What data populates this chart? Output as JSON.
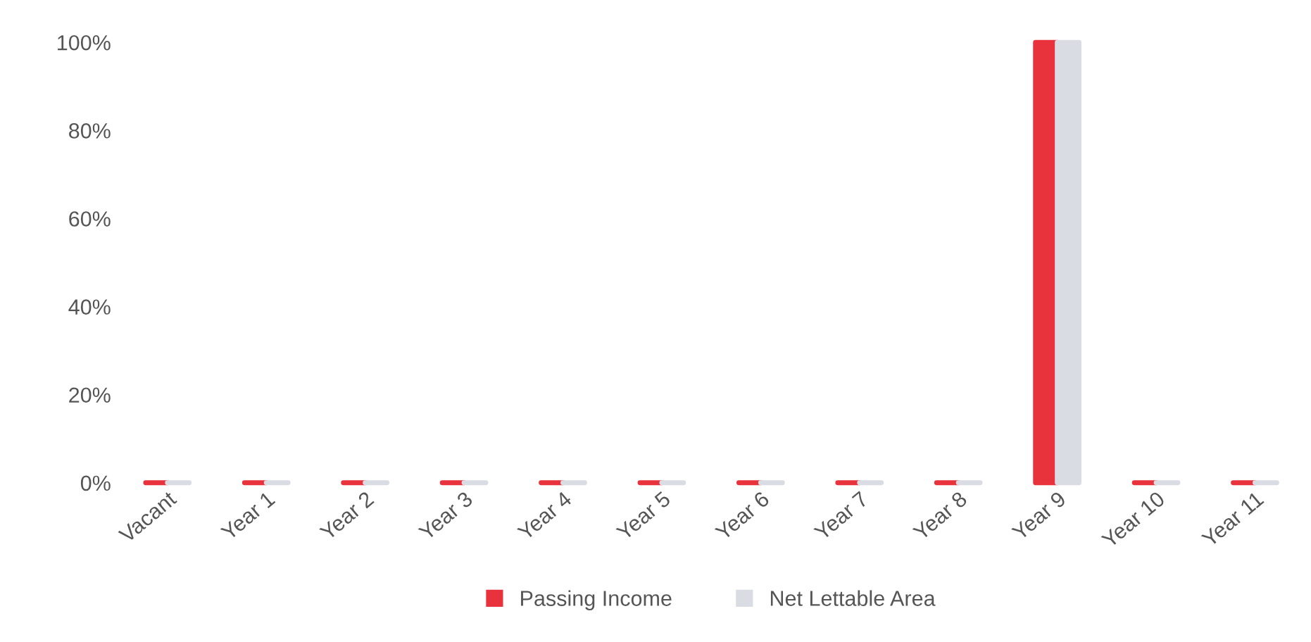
{
  "chart_data": {
    "type": "bar",
    "categories": [
      "Vacant",
      "Year 1",
      "Year 2",
      "Year 3",
      "Year 4",
      "Year 5",
      "Year 6",
      "Year 7",
      "Year 8",
      "Year 9",
      "Year 10",
      "Year 11"
    ],
    "series": [
      {
        "name": "Passing Income",
        "color": "#e8323c",
        "values": [
          0,
          0,
          0,
          0,
          0,
          0,
          0,
          0,
          0,
          100,
          0,
          0
        ]
      },
      {
        "name": "Net Lettable Area",
        "color": "#d9dce3",
        "values": [
          0,
          0,
          0,
          0,
          0,
          0,
          0,
          0,
          0,
          100,
          0,
          0
        ]
      }
    ],
    "ylim": [
      0,
      100
    ],
    "yticks": [
      {
        "value": 0,
        "label": "0%"
      },
      {
        "value": 20,
        "label": "20%"
      },
      {
        "value": 40,
        "label": "40%"
      },
      {
        "value": 60,
        "label": "60%"
      },
      {
        "value": 80,
        "label": "80%"
      },
      {
        "value": 100,
        "label": "100%"
      }
    ],
    "grid": false,
    "legend": "bottom"
  }
}
